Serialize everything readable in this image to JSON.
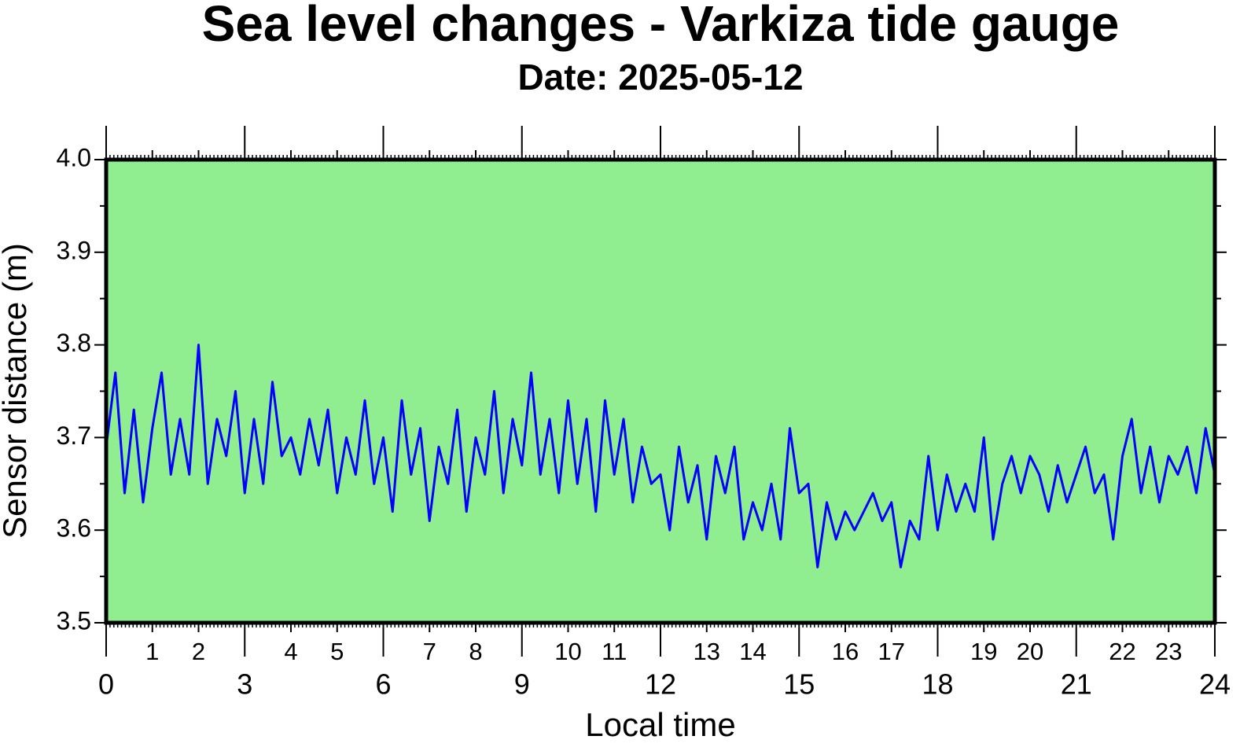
{
  "chart_data": {
    "type": "line",
    "title": "Sea level changes - Varkiza tide gauge",
    "subtitle": "Date: 2025-05-12",
    "xlabel": "Local time",
    "ylabel": "Sensor distance (m)",
    "background": "#90ee90",
    "x": [
      0,
      0.2,
      0.4,
      0.6,
      0.8,
      1,
      1.2,
      1.4,
      1.6,
      1.8,
      2,
      2.2,
      2.4,
      2.6,
      2.8,
      3,
      3.2,
      3.4,
      3.6,
      3.8,
      4,
      4.2,
      4.4,
      4.6,
      4.8,
      5,
      5.2,
      5.4,
      5.6,
      5.8,
      6,
      6.2,
      6.4,
      6.6,
      6.8,
      7,
      7.2,
      7.4,
      7.6,
      7.8,
      8,
      8.2,
      8.4,
      8.6,
      8.8,
      9,
      9.2,
      9.4,
      9.6,
      9.8,
      10,
      10.2,
      10.4,
      10.6,
      10.8,
      11,
      11.2,
      11.4,
      11.6,
      11.8,
      12,
      12.2,
      12.4,
      12.6,
      12.8,
      13,
      13.2,
      13.4,
      13.6,
      13.8,
      14,
      14.2,
      14.4,
      14.6,
      14.8,
      15,
      15.2,
      15.4,
      15.6,
      15.8,
      16,
      16.2,
      16.4,
      16.6,
      16.8,
      17,
      17.2,
      17.4,
      17.6,
      17.8,
      18,
      18.2,
      18.4,
      18.6,
      18.8,
      19,
      19.2,
      19.4,
      19.6,
      19.8,
      20,
      20.2,
      20.4,
      20.6,
      20.8,
      21,
      21.2,
      21.4,
      21.6,
      21.8,
      22,
      22.2,
      22.4,
      22.6,
      22.8,
      23,
      23.2,
      23.4,
      23.6,
      23.8,
      24
    ],
    "series": [
      {
        "name": "Sensor distance",
        "color": "#0000ff",
        "values": [
          3.69,
          3.77,
          3.64,
          3.73,
          3.63,
          3.71,
          3.77,
          3.66,
          3.72,
          3.66,
          3.8,
          3.65,
          3.72,
          3.68,
          3.75,
          3.64,
          3.72,
          3.65,
          3.76,
          3.68,
          3.7,
          3.66,
          3.72,
          3.67,
          3.73,
          3.64,
          3.7,
          3.66,
          3.74,
          3.65,
          3.7,
          3.62,
          3.74,
          3.66,
          3.71,
          3.61,
          3.69,
          3.65,
          3.73,
          3.62,
          3.7,
          3.66,
          3.75,
          3.64,
          3.72,
          3.67,
          3.77,
          3.66,
          3.72,
          3.64,
          3.74,
          3.65,
          3.72,
          3.62,
          3.74,
          3.66,
          3.72,
          3.63,
          3.69,
          3.65,
          3.66,
          3.6,
          3.69,
          3.63,
          3.67,
          3.59,
          3.68,
          3.64,
          3.69,
          3.59,
          3.63,
          3.6,
          3.65,
          3.59,
          3.71,
          3.64,
          3.65,
          3.56,
          3.63,
          3.59,
          3.62,
          3.6,
          3.62,
          3.64,
          3.61,
          3.63,
          3.56,
          3.61,
          3.59,
          3.68,
          3.6,
          3.66,
          3.62,
          3.65,
          3.62,
          3.7,
          3.59,
          3.65,
          3.68,
          3.64,
          3.68,
          3.66,
          3.62,
          3.67,
          3.63,
          3.66,
          3.69,
          3.64,
          3.66,
          3.59,
          3.68,
          3.72,
          3.64,
          3.69,
          3.63,
          3.68,
          3.66,
          3.69,
          3.64,
          3.71,
          3.66
        ]
      }
    ],
    "xlim": [
      0,
      24
    ],
    "xticks": [
      0,
      3,
      6,
      9,
      12,
      15,
      18,
      21,
      24
    ],
    "xminorticks": [
      1,
      2,
      4,
      5,
      7,
      8,
      10,
      11,
      13,
      14,
      16,
      17,
      19,
      20,
      22,
      23
    ],
    "ylim": [
      3.5,
      4.0
    ],
    "yticks": [
      3.5,
      3.6,
      3.7,
      3.8,
      3.9,
      {
        "value": 4.0,
        "label": "4.0"
      }
    ]
  }
}
